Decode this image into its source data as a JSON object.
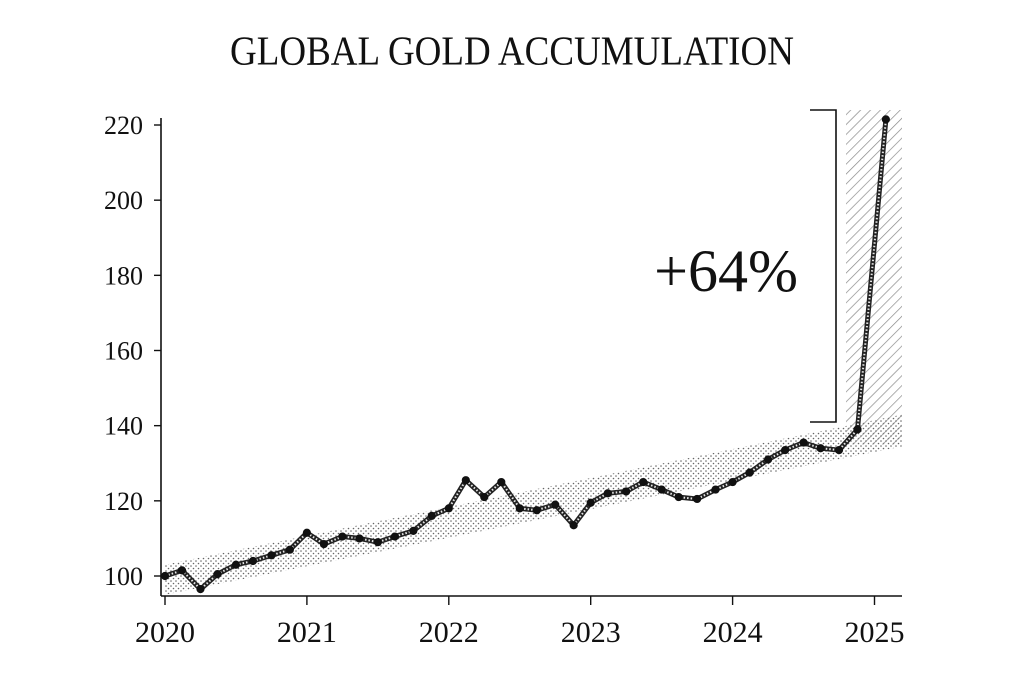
{
  "chart_data": {
    "type": "line",
    "title": "GLOBAL GOLD ACCUMULATION",
    "xlabel": "",
    "ylabel": "",
    "xlim": [
      2020,
      2025.2
    ],
    "ylim": [
      95,
      220
    ],
    "x_ticks": [
      2020,
      2021,
      2022,
      2023,
      2024,
      2025
    ],
    "x_tick_labels": [
      "2020",
      "2021",
      "2022",
      "2023",
      "2024",
      "2025"
    ],
    "y_ticks": [
      100,
      120,
      140,
      160,
      180,
      200,
      220
    ],
    "y_tick_labels": [
      "100",
      "120",
      "140",
      "160",
      "180",
      "200",
      "220"
    ],
    "series": [
      {
        "name": "Gold accumulation",
        "x": [
          2020.0,
          2020.12,
          2020.25,
          2020.37,
          2020.5,
          2020.62,
          2020.75,
          2020.88,
          2021.0,
          2021.12,
          2021.25,
          2021.37,
          2021.5,
          2021.62,
          2021.75,
          2021.88,
          2022.0,
          2022.12,
          2022.25,
          2022.37,
          2022.5,
          2022.62,
          2022.75,
          2022.88,
          2023.0,
          2023.12,
          2023.25,
          2023.37,
          2023.5,
          2023.62,
          2023.75,
          2023.88,
          2024.0,
          2024.12,
          2024.25,
          2024.37,
          2024.5,
          2024.62,
          2024.75,
          2024.88,
          2025.08
        ],
        "values": [
          100,
          101.5,
          96.5,
          100.5,
          103,
          104,
          105.5,
          107,
          111.5,
          108.5,
          110.5,
          110,
          109,
          110.5,
          112,
          116,
          118,
          125.5,
          121,
          125,
          118,
          117.5,
          119,
          113.5,
          119.5,
          122,
          122.5,
          125,
          123,
          121,
          120.5,
          123,
          125,
          127.5,
          131,
          133.5,
          135.5,
          134,
          133.5,
          139,
          221.5
        ]
      }
    ],
    "trend_band": {
      "x": [
        2020,
        2025.2
      ],
      "lower": [
        95,
        134.5
      ],
      "upper": [
        103,
        143
      ]
    },
    "annotation": {
      "label": "+64%",
      "from_value": 140,
      "to_value": 222
    },
    "highlight_region": {
      "x_start": 2024.9,
      "x_end": 2025.2
    }
  }
}
